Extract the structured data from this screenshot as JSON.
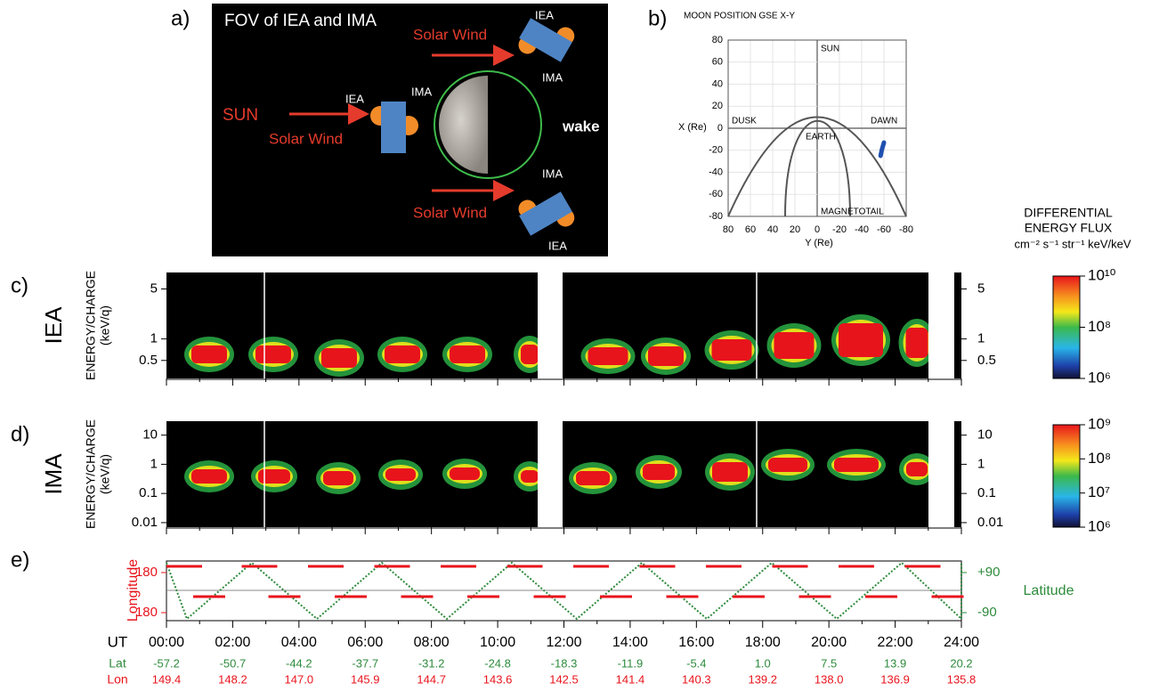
{
  "panel_a": {
    "label": "a)",
    "title": "FOV of IEA and IMA",
    "sun": "SUN",
    "solar_wind": [
      "Solar Wind",
      "Solar Wind",
      "Solar Wind"
    ],
    "instruments": [
      "IEA",
      "IMA",
      "IEA",
      "IMA",
      "IMA",
      "IEA"
    ],
    "wake": "wake"
  },
  "panel_b": {
    "label": "b)",
    "title": "MOON POSITION  GSE X-Y",
    "xlabel": "Y (Re)",
    "ylabel": "X (Re)",
    "xlim": [
      80,
      -80
    ],
    "ylim": [
      -80,
      80
    ],
    "xticks": [
      80,
      60,
      40,
      20,
      0,
      -20,
      -40,
      -60,
      -80
    ],
    "yticks": [
      80,
      60,
      40,
      20,
      0,
      -20,
      -40,
      -60,
      -80
    ],
    "annotations": [
      "SUN",
      "DUSK",
      "DAWN",
      "EARTH",
      "MAGNETOTAIL"
    ],
    "moon_track": {
      "x": [
        -57,
        -58,
        -60
      ],
      "y": [
        -25,
        -20,
        -13
      ],
      "color": "#1f4fb0"
    }
  },
  "colorbar": {
    "title": [
      "DIFFERENTIAL",
      "ENERGY FLUX"
    ],
    "unit": "cm⁻² s⁻¹ str⁻¹ keV/keV"
  },
  "panel_c": {
    "label": "c)",
    "instrument": "IEA",
    "ylabel": [
      "ENERGY/CHARGE",
      "(keV/q)"
    ],
    "ylim": [
      0.28,
      8.5
    ],
    "yticks": [
      5,
      1,
      0.5
    ],
    "colorbar_lim": [
      1000000,
      10000000000
    ],
    "colorbar_ticks": [
      {
        "value": 10000000000,
        "label": "10¹⁰"
      },
      {
        "value": 100000000,
        "label": "10⁸"
      },
      {
        "value": 1000000,
        "label": "10⁶"
      }
    ]
  },
  "panel_d": {
    "label": "d)",
    "instrument": "IMA",
    "ylabel": [
      "ENERGY/CHARGE",
      "(keV/q)"
    ],
    "ylim": [
      0.007,
      30
    ],
    "yticks": [
      10,
      1,
      0.1,
      0.01
    ],
    "colorbar_lim": [
      1000000,
      1000000000
    ],
    "colorbar_ticks": [
      {
        "value": 1000000000,
        "label": "10⁹"
      },
      {
        "value": 100000000,
        "label": "10⁸"
      },
      {
        "value": 10000000,
        "label": "10⁷"
      },
      {
        "value": 1000000,
        "label": "10⁶"
      }
    ]
  },
  "panel_e": {
    "label": "e)",
    "left_label": "Longitude",
    "ylim": [
      -252,
      284
    ],
    "left_ticks": [
      180,
      -180
    ],
    "right_label": "Latitude",
    "y2lim": [
      -126,
      142
    ],
    "right_ticks": [
      {
        "value": 90,
        "label": "+90"
      },
      -90
    ],
    "time": {
      "label": "UT",
      "ticks": [
        "00:00",
        "02:00",
        "04:00",
        "06:00",
        "08:00",
        "10:00",
        "12:00",
        "14:00",
        "16:00",
        "18:00",
        "20:00",
        "22:00",
        "24:00"
      ]
    },
    "lat": {
      "label": "Lat",
      "values": [
        "-57.2",
        "-50.7",
        "-44.2",
        "-37.7",
        "-31.2",
        "-24.8",
        "-18.3",
        "-11.9",
        "-5.4",
        "1.0",
        "7.5",
        "13.9",
        "20.2"
      ]
    },
    "lon": {
      "label": "Lon",
      "values": [
        "149.4",
        "148.2",
        "147.0",
        "145.9",
        "144.7",
        "143.6",
        "142.5",
        "141.4",
        "140.3",
        "139.2",
        "138.0",
        "136.9",
        "135.8"
      ]
    }
  }
}
